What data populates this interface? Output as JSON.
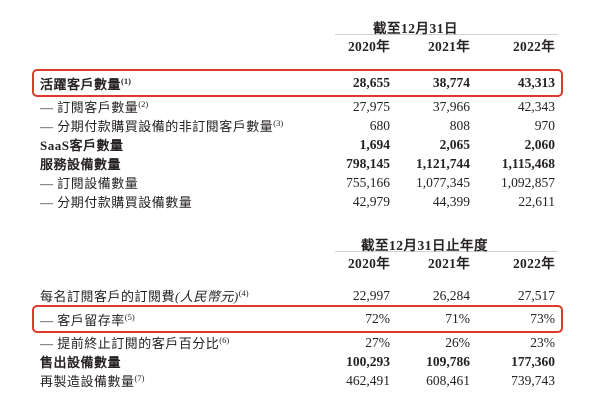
{
  "colors": {
    "highlight_box_red": "#dd3a2c",
    "text": "#262223",
    "header_rule_gray": "#ccd2d6"
  },
  "table1": {
    "period_header": "截至12月31日",
    "years": [
      "2020年",
      "2021年",
      "2022年"
    ],
    "rows": [
      {
        "label": "活躍客戶數量",
        "sup": "(1)",
        "values": [
          "28,655",
          "38,774",
          "43,313"
        ],
        "bold": true,
        "boxed": true
      },
      {
        "label": "— 訂閱客戶數量",
        "sup": "(2)",
        "values": [
          "27,975",
          "37,966",
          "42,343"
        ],
        "bold": false,
        "boxed": false
      },
      {
        "label": "— 分期付款購買設備的非訂閱客戶數量",
        "sup": "(3)",
        "values": [
          "680",
          "808",
          "970"
        ],
        "bold": false,
        "boxed": false
      },
      {
        "label": "SaaS客戶數量",
        "sup": "",
        "values": [
          "1,694",
          "2,065",
          "2,060"
        ],
        "bold": true,
        "boxed": false
      },
      {
        "label": "服務設備數量",
        "sup": "",
        "values": [
          "798,145",
          "1,121,744",
          "1,115,468"
        ],
        "bold": true,
        "boxed": false
      },
      {
        "label": "— 訂閱設備數量",
        "sup": "",
        "values": [
          "755,166",
          "1,077,345",
          "1,092,857"
        ],
        "bold": false,
        "boxed": false
      },
      {
        "label": "— 分期付款購買設備數量",
        "sup": "",
        "values": [
          "42,979",
          "44,399",
          "22,611"
        ],
        "bold": false,
        "boxed": false
      }
    ]
  },
  "table2": {
    "period_header": "截至12月31日止年度",
    "years": [
      "2020年",
      "2021年",
      "2022年"
    ],
    "rows": [
      {
        "label": "每名訂閱客戶的訂閱費",
        "italic": "(人民幣元)",
        "sup": "(4)",
        "values": [
          "22,997",
          "26,284",
          "27,517"
        ],
        "bold": false,
        "boxed": false
      },
      {
        "label": "— 客戶留存率",
        "sup": "(5)",
        "values": [
          "72%",
          "71%",
          "73%"
        ],
        "bold": false,
        "boxed": true
      },
      {
        "label": "— 提前終止訂閱的客戶百分比",
        "sup": "(6)",
        "values": [
          "27%",
          "26%",
          "23%"
        ],
        "bold": false,
        "boxed": false
      },
      {
        "label": "售出設備數量",
        "sup": "",
        "values": [
          "100,293",
          "109,786",
          "177,360"
        ],
        "bold": true,
        "boxed": false
      },
      {
        "label": "再製造設備數量",
        "sup": "(7)",
        "values": [
          "462,491",
          "608,461",
          "739,743"
        ],
        "bold": false,
        "boxed": false
      }
    ]
  }
}
